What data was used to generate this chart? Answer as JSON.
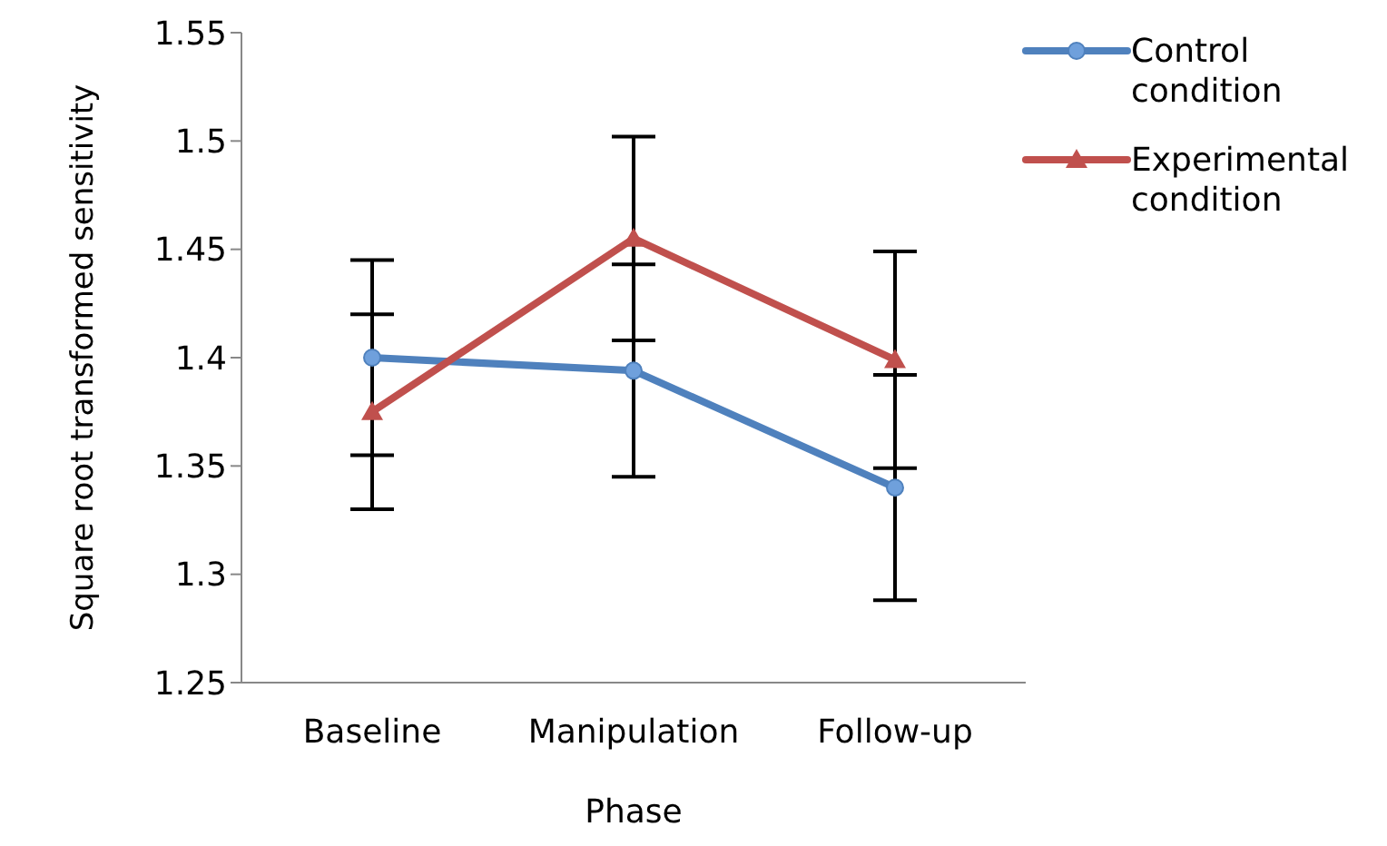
{
  "chart_data": {
    "type": "line",
    "xlabel": "Phase",
    "ylabel": "Square root transformed sensitivity",
    "categories": [
      "Baseline",
      "Manipulation",
      "Follow-up"
    ],
    "series": [
      {
        "name": "Control condition",
        "color": "#4f81bd",
        "marker": "circle",
        "values": [
          1.4,
          1.394,
          1.34
        ],
        "errors": [
          0.045,
          0.049,
          0.052
        ]
      },
      {
        "name": "Experimental condition",
        "color": "#c0504d",
        "marker": "triangle",
        "values": [
          1.375,
          1.455,
          1.399
        ],
        "errors": [
          0.045,
          0.047,
          0.05
        ]
      }
    ],
    "ylim": [
      1.25,
      1.55
    ],
    "yticks": [
      1.25,
      1.3,
      1.35,
      1.4,
      1.45,
      1.5,
      1.55
    ],
    "grid": false,
    "legend": "top right"
  }
}
